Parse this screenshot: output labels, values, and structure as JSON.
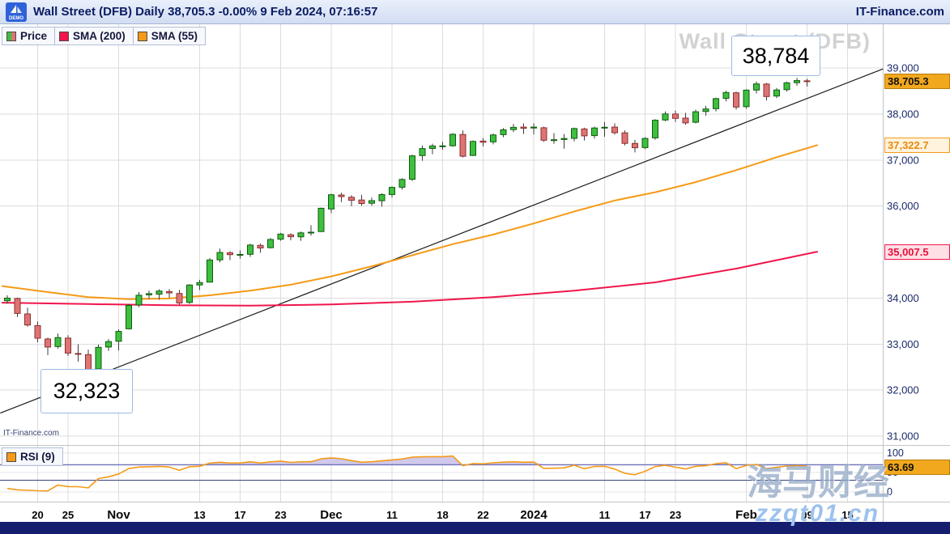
{
  "header": {
    "logo_text": "DEMO",
    "title": "Wall Street (DFB) Daily 38,705.3 -0.00% 9 Feb 2024, 07:16:57",
    "brand": "IT-Finance.com"
  },
  "legend": {
    "price_label": "Price",
    "sma200_label": "SMA (200)",
    "sma55_label": "SMA (55)",
    "rsi_label": "RSI (9)"
  },
  "annotations": {
    "high_label": "38,784",
    "low_label": "32,323"
  },
  "watermarks": {
    "chart": "Wall Street (DFB)",
    "site_cn": "海马财经",
    "site_url": "zzqt01.cn",
    "corner": "IT-Finance.com"
  },
  "axis": {
    "price_ticks": [
      {
        "v": 39000,
        "label": "39,000"
      },
      {
        "v": 38000,
        "label": "38,000"
      },
      {
        "v": 37000,
        "label": "37,000"
      },
      {
        "v": 36000,
        "label": "36,000"
      },
      {
        "v": 34000,
        "label": "34,000"
      },
      {
        "v": 33000,
        "label": "33,000"
      },
      {
        "v": 32000,
        "label": "32,000"
      },
      {
        "v": 31000,
        "label": "31,000"
      }
    ],
    "last_price": {
      "v": 38705.3,
      "label": "38,705.3"
    },
    "sma55_value": {
      "v": 37322.7,
      "label": "37,322.7"
    },
    "sma200_value": {
      "v": 35007.5,
      "label": "35,007.5"
    },
    "rsi_ticks": [
      {
        "v": 100,
        "label": "100"
      },
      {
        "v": 50,
        "label": "50"
      },
      {
        "v": 0,
        "label": "0"
      }
    ],
    "rsi_value": {
      "v": 63.69,
      "label": "63.69"
    },
    "date_ticks": [
      {
        "label": "20",
        "i": 3
      },
      {
        "label": "25",
        "i": 6
      },
      {
        "label": "Nov",
        "i": 11,
        "big": true
      },
      {
        "label": "13",
        "i": 19
      },
      {
        "label": "17",
        "i": 23
      },
      {
        "label": "23",
        "i": 27
      },
      {
        "label": "Dec",
        "i": 32,
        "big": true
      },
      {
        "label": "11",
        "i": 38
      },
      {
        "label": "18",
        "i": 43
      },
      {
        "label": "22",
        "i": 47
      },
      {
        "label": "2024",
        "i": 52,
        "big": true
      },
      {
        "label": "11",
        "i": 59
      },
      {
        "label": "17",
        "i": 63
      },
      {
        "label": "23",
        "i": 66
      },
      {
        "label": "Feb",
        "i": 73,
        "big": true
      },
      {
        "label": "09",
        "i": 79
      },
      {
        "label": "15",
        "i": 83
      }
    ]
  },
  "chart_data": {
    "type": "candlestick",
    "title": "Wall Street (DFB) Daily",
    "price_range": [
      31000,
      39000
    ],
    "high_marker": 38784,
    "low_marker": 32323,
    "candles_format": "[open, high, low, close]",
    "candles": [
      [
        33940,
        34060,
        33880,
        33997
      ],
      [
        33990,
        34010,
        33590,
        33665
      ],
      [
        33655,
        33790,
        33380,
        33414
      ],
      [
        33400,
        33490,
        33040,
        33127
      ],
      [
        33110,
        33140,
        32760,
        32936
      ],
      [
        32945,
        33230,
        32900,
        33141
      ],
      [
        33130,
        33190,
        32740,
        32804
      ],
      [
        32795,
        32995,
        32620,
        32784
      ],
      [
        32770,
        32880,
        32323,
        32418
      ],
      [
        32460,
        32990,
        32430,
        32929
      ],
      [
        32935,
        33110,
        32850,
        33053
      ],
      [
        33060,
        33320,
        32860,
        33275
      ],
      [
        33330,
        33870,
        33320,
        33839
      ],
      [
        33850,
        34130,
        33800,
        34061
      ],
      [
        34070,
        34160,
        33980,
        34096
      ],
      [
        34085,
        34190,
        33965,
        34153
      ],
      [
        34140,
        34195,
        34005,
        34112
      ],
      [
        34100,
        34175,
        33855,
        33892
      ],
      [
        33905,
        34300,
        33870,
        34283
      ],
      [
        34285,
        34395,
        34175,
        34337
      ],
      [
        34345,
        34870,
        34340,
        34827
      ],
      [
        34830,
        35075,
        34775,
        34991
      ],
      [
        34985,
        35015,
        34825,
        34945
      ],
      [
        34940,
        35035,
        34855,
        34947
      ],
      [
        34950,
        35180,
        34895,
        35151
      ],
      [
        35145,
        35185,
        34985,
        35088
      ],
      [
        35095,
        35305,
        35075,
        35273
      ],
      [
        35280,
        35415,
        35245,
        35390
      ],
      [
        35375,
        35410,
        35255,
        35333
      ],
      [
        35330,
        35445,
        35245,
        35417
      ],
      [
        35430,
        35585,
        35355,
        35430
      ],
      [
        35445,
        35965,
        35440,
        35951
      ],
      [
        35935,
        36265,
        35845,
        36245
      ],
      [
        36240,
        36290,
        36085,
        36204
      ],
      [
        36190,
        36235,
        35995,
        36124
      ],
      [
        36130,
        36245,
        36005,
        36054
      ],
      [
        36060,
        36185,
        36005,
        36117
      ],
      [
        36115,
        36275,
        35985,
        36248
      ],
      [
        36250,
        36425,
        36185,
        36405
      ],
      [
        36410,
        36605,
        36355,
        36578
      ],
      [
        36580,
        37115,
        36545,
        37090
      ],
      [
        37095,
        37315,
        36985,
        37248
      ],
      [
        37250,
        37355,
        37125,
        37305
      ],
      [
        37300,
        37395,
        37225,
        37306
      ],
      [
        37310,
        37585,
        37285,
        37558
      ],
      [
        37555,
        37645,
        37055,
        37082
      ],
      [
        37100,
        37425,
        37085,
        37404
      ],
      [
        37410,
        37475,
        37295,
        37386
      ],
      [
        37395,
        37575,
        37340,
        37545
      ],
      [
        37550,
        37695,
        37495,
        37656
      ],
      [
        37660,
        37785,
        37605,
        37710
      ],
      [
        37715,
        37795,
        37565,
        37690
      ],
      [
        37695,
        37795,
        37555,
        37715
      ],
      [
        37700,
        37725,
        37395,
        37430
      ],
      [
        37435,
        37585,
        37355,
        37440
      ],
      [
        37445,
        37565,
        37245,
        37466
      ],
      [
        37470,
        37705,
        37405,
        37683
      ],
      [
        37675,
        37700,
        37425,
        37525
      ],
      [
        37530,
        37725,
        37465,
        37696
      ],
      [
        37700,
        37825,
        37505,
        37711
      ],
      [
        37715,
        37795,
        37555,
        37593
      ],
      [
        37590,
        37645,
        37315,
        37361
      ],
      [
        37360,
        37435,
        37165,
        37267
      ],
      [
        37270,
        37495,
        37235,
        37469
      ],
      [
        37480,
        37885,
        37440,
        37864
      ],
      [
        37870,
        38055,
        37845,
        38002
      ],
      [
        38000,
        38075,
        37825,
        37905
      ],
      [
        37910,
        38025,
        37765,
        37806
      ],
      [
        37820,
        38095,
        37795,
        38049
      ],
      [
        38055,
        38175,
        37965,
        38109
      ],
      [
        38115,
        38355,
        38055,
        38333
      ],
      [
        38340,
        38505,
        38275,
        38467
      ],
      [
        38460,
        38485,
        38095,
        38150
      ],
      [
        38160,
        38535,
        38115,
        38519
      ],
      [
        38520,
        38705,
        38445,
        38654
      ],
      [
        38650,
        38675,
        38295,
        38380
      ],
      [
        38390,
        38565,
        38345,
        38521
      ],
      [
        38530,
        38705,
        38485,
        38677
      ],
      [
        38680,
        38784,
        38615,
        38726
      ],
      [
        38720,
        38765,
        38595,
        38705.3
      ]
    ],
    "pre_closes": [
      34550,
      34450,
      34400,
      34460,
      34380,
      34300,
      34250,
      34180,
      34080,
      34010
    ],
    "sma200_points": [
      {
        "i": -0.5,
        "v": 33900
      },
      {
        "i": 8,
        "v": 33870
      },
      {
        "i": 16,
        "v": 33845
      },
      {
        "i": 24,
        "v": 33835
      },
      {
        "i": 32,
        "v": 33860
      },
      {
        "i": 40,
        "v": 33920
      },
      {
        "i": 48,
        "v": 34020
      },
      {
        "i": 56,
        "v": 34160
      },
      {
        "i": 64,
        "v": 34340
      },
      {
        "i": 72,
        "v": 34640
      },
      {
        "i": 80,
        "v": 35007.5
      }
    ],
    "sma55_points": [
      {
        "i": -0.5,
        "v": 34260
      },
      {
        "i": 4,
        "v": 34130
      },
      {
        "i": 8,
        "v": 34020
      },
      {
        "i": 12,
        "v": 33975
      },
      {
        "i": 16,
        "v": 33990
      },
      {
        "i": 20,
        "v": 34060
      },
      {
        "i": 24,
        "v": 34160
      },
      {
        "i": 28,
        "v": 34290
      },
      {
        "i": 32,
        "v": 34470
      },
      {
        "i": 36,
        "v": 34690
      },
      {
        "i": 40,
        "v": 34930
      },
      {
        "i": 44,
        "v": 35170
      },
      {
        "i": 48,
        "v": 35380
      },
      {
        "i": 52,
        "v": 35620
      },
      {
        "i": 56,
        "v": 35880
      },
      {
        "i": 60,
        "v": 36120
      },
      {
        "i": 64,
        "v": 36300
      },
      {
        "i": 68,
        "v": 36520
      },
      {
        "i": 72,
        "v": 36780
      },
      {
        "i": 76,
        "v": 37060
      },
      {
        "i": 80,
        "v": 37322.7
      }
    ],
    "trendline": {
      "i1": -0.7,
      "v1": 31500,
      "i2": 86.5,
      "v2": 38980
    },
    "rsi_period": 9,
    "rsi_levels": [
      30,
      70
    ],
    "colors": {
      "candle_up": "#3fbf3f",
      "candle_up_border": "#0e5e0e",
      "candle_down": "#dd7474",
      "candle_down_border": "#8f2f2f",
      "sma200": "#f0164c",
      "sma55": "#f59a16",
      "rsi": "#f59a16",
      "rsi_fill": "#cbc3e9",
      "rsi_line70": "#7070bc",
      "rsi_line30": "#2a3578",
      "trend": "#1c1c1c",
      "grid": "#dcdcdc",
      "last_price_bg": "#f2a81e"
    }
  }
}
